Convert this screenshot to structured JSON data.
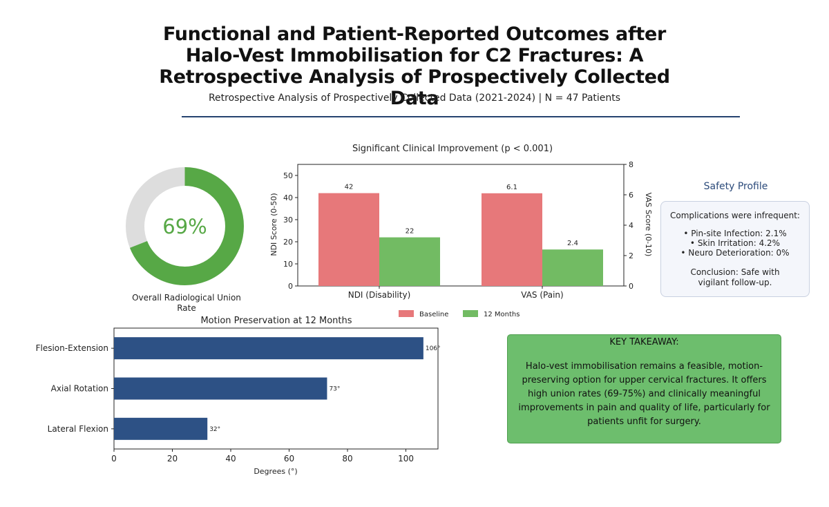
{
  "header": {
    "title": "Functional and Patient-Reported Outcomes after Halo-Vest Immobilisation for C2 Fractures: A Retrospective Analysis of Prospectively Collected Data",
    "subtitle": "Retrospective Analysis of Prospectively Collected Data (2021-2024) | N = 47 Patients"
  },
  "colors": {
    "baseline": "#e7787a",
    "twelve_months": "#72bb63",
    "donut_fill": "#57a846",
    "donut_track": "#dddddd",
    "motion_bar": "#2d5185",
    "takeaway_bg": "#6dbe6d"
  },
  "safety": {
    "title": "Safety Profile",
    "intro": "Complications were infrequent:",
    "items": [
      "• Pin-site Infection: 2.1%",
      "• Skin Irritation: 4.2%",
      "• Neuro Deterioration: 0%"
    ],
    "conclusion": "Conclusion: Safe with vigilant follow-up."
  },
  "takeaway": {
    "heading": "KEY TAKEAWAY:",
    "body": "Halo-vest immobilisation remains a feasible, motion-preserving option for upper cervical fractures. It offers high union rates (69-75%) and clinically meaningful improvements in pain and quality of life, particularly for patients unfit for surgery."
  },
  "chart_data": [
    {
      "type": "pie",
      "id": "union_rate",
      "value": 69,
      "center_label": "69%",
      "label": "Overall Radiological Union Rate"
    },
    {
      "type": "bar",
      "id": "clinical_improvement",
      "title": "Significant Clinical Improvement (p < 0.001)",
      "categories": [
        "NDI (Disability)",
        "VAS (Pain)"
      ],
      "series": [
        {
          "name": "Baseline",
          "values": [
            42,
            6.1
          ],
          "labels": [
            "42",
            "6.1"
          ]
        },
        {
          "name": "12 Months",
          "values": [
            22,
            2.4
          ],
          "labels": [
            "22",
            "2.4"
          ]
        }
      ],
      "ylabel_left": "NDI Score (0-50)",
      "ylim_left": [
        0,
        55
      ],
      "yticks_left": [
        0,
        10,
        20,
        30,
        40,
        50
      ],
      "ylabel_right": "VAS Score (0-10)",
      "ylim_right": [
        0,
        8
      ],
      "yticks_right": [
        0,
        2,
        4,
        6,
        8
      ],
      "legend": "bottom"
    },
    {
      "type": "bar",
      "id": "motion_preservation",
      "orientation": "horizontal",
      "title": "Motion Preservation at 12 Months",
      "categories": [
        "Flesion-Extension",
        "Axial Rotation",
        "Lateral Flexion"
      ],
      "values": [
        106,
        73,
        32
      ],
      "value_labels": [
        "106°",
        "73°",
        "32°"
      ],
      "xlabel": "Degrees (°)",
      "xlim": [
        0,
        111
      ],
      "xticks": [
        0,
        20,
        40,
        60,
        80,
        100
      ]
    }
  ]
}
